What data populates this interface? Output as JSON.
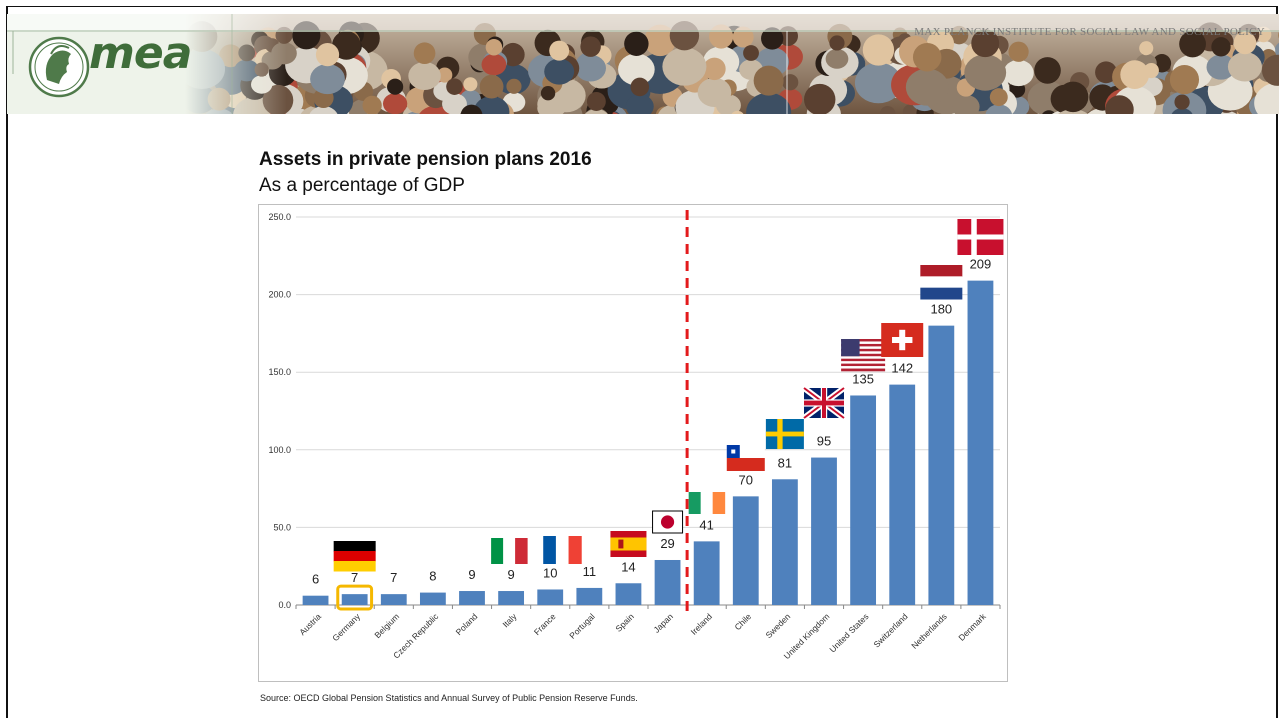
{
  "header": {
    "logo_text": "mea",
    "institute": "MAX PLANCK INSTITUTE FOR SOCIAL LAW AND SOCIAL POLICY"
  },
  "colors": {
    "bar": "#4f81bd",
    "grid": "#d9d9d9",
    "divider": "#e31a1c",
    "highlight": "#f5b800"
  },
  "chart_data": {
    "type": "bar",
    "title": "Assets in private pension plans 2016",
    "subtitle": "As a percentage of GDP",
    "categories": [
      "Austria",
      "Germany",
      "Belgium",
      "Czech Republic",
      "Poland",
      "Italy",
      "France",
      "Portugal",
      "Spain",
      "Japan",
      "Ireland",
      "Chile",
      "Sweden",
      "United Kingdom",
      "United States",
      "Switzerland",
      "Netherlands",
      "Denmark"
    ],
    "values": [
      6,
      7,
      7,
      8,
      9,
      9,
      10,
      11,
      14,
      29,
      41,
      70,
      81,
      95,
      135,
      142,
      180,
      209
    ],
    "data_labels": [
      "6",
      "7",
      "7",
      "8",
      "9",
      "9",
      "10",
      "11",
      "14",
      "29",
      "41",
      "70",
      "81",
      "95",
      "135",
      "142",
      "180",
      "209"
    ],
    "ylim": [
      0,
      250
    ],
    "yticks": [
      "0.0",
      "50.0",
      "100.0",
      "150.0",
      "200.0",
      "250.0"
    ],
    "grid": true,
    "divider_between": [
      "Japan",
      "Ireland"
    ],
    "highlighted_category": "Germany",
    "source": "Source: OECD Global Pension Statistics and Annual Survey of Public Pension Reserve Funds."
  }
}
